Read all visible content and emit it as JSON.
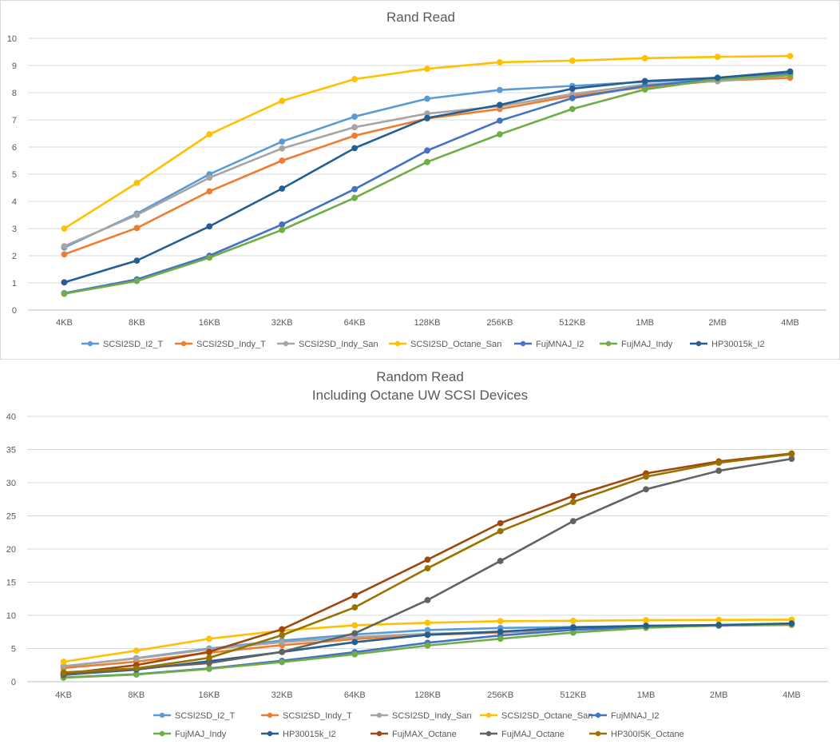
{
  "chart_data": [
    {
      "type": "line",
      "title": "Rand Read",
      "subtitle": "",
      "xlabel": "",
      "ylabel": "",
      "ylim": [
        0,
        10
      ],
      "yticks": [
        0,
        1,
        2,
        3,
        4,
        5,
        6,
        7,
        8,
        9,
        10
      ],
      "grid": true,
      "legend_placement": "bottom",
      "categories": [
        "4KB",
        "8KB",
        "16KB",
        "32KB",
        "64KB",
        "128KB",
        "256KB",
        "512KB",
        "1MB",
        "2MB",
        "4MB"
      ],
      "series": [
        {
          "name": "SCSI2SD_I2_T",
          "color": "#5b9bd5",
          "values": [
            2.3,
            3.55,
            5.0,
            6.2,
            7.12,
            7.78,
            8.1,
            8.25,
            8.4,
            8.5,
            8.7
          ]
        },
        {
          "name": "SCSI2SD_Indy_T",
          "color": "#ed7d31",
          "values": [
            2.05,
            3.02,
            4.37,
            5.5,
            6.42,
            7.05,
            7.4,
            7.88,
            8.2,
            8.44,
            8.55
          ]
        },
        {
          "name": "SCSI2SD_Indy_San",
          "color": "#a5a5a5",
          "values": [
            2.35,
            3.5,
            4.87,
            5.95,
            6.73,
            7.23,
            7.5,
            7.95,
            8.3,
            8.42,
            8.65
          ]
        },
        {
          "name": "SCSI2SD_Octane_San",
          "color": "#ffc000",
          "values": [
            3.0,
            4.68,
            6.47,
            7.7,
            8.5,
            8.88,
            9.12,
            9.18,
            9.27,
            9.32,
            9.35
          ]
        },
        {
          "name": "FujMNAJ_I2",
          "color": "#4472c4",
          "values": [
            0.62,
            1.13,
            2.0,
            3.15,
            4.45,
            5.87,
            6.97,
            7.8,
            8.25,
            8.5,
            8.7
          ]
        },
        {
          "name": "FujMAJ_Indy",
          "color": "#70ad47",
          "values": [
            0.6,
            1.07,
            1.93,
            2.95,
            4.13,
            5.45,
            6.47,
            7.4,
            8.12,
            8.5,
            8.65
          ]
        },
        {
          "name": "HP30015k_I2",
          "color": "#255e91",
          "values": [
            1.02,
            1.82,
            3.08,
            4.47,
            5.96,
            7.07,
            7.55,
            8.15,
            8.43,
            8.55,
            8.78
          ]
        }
      ]
    },
    {
      "type": "line",
      "title": "Random Read",
      "subtitle": "Including Octane UW SCSI Devices",
      "xlabel": "",
      "ylabel": "",
      "ylim": [
        0,
        40
      ],
      "yticks": [
        0,
        5,
        10,
        15,
        20,
        25,
        30,
        35,
        40
      ],
      "grid": true,
      "legend_placement": "bottom",
      "categories": [
        "4KB",
        "8KB",
        "16KB",
        "32KB",
        "64KB",
        "128KB",
        "256KB",
        "512KB",
        "1MB",
        "2MB",
        "4MB"
      ],
      "series": [
        {
          "name": "SCSI2SD_I2_T",
          "color": "#5b9bd5",
          "values": [
            2.3,
            3.55,
            5.0,
            6.2,
            7.12,
            7.78,
            8.1,
            8.25,
            8.4,
            8.5,
            8.7
          ]
        },
        {
          "name": "SCSI2SD_Indy_T",
          "color": "#ed7d31",
          "values": [
            2.05,
            3.02,
            4.37,
            5.5,
            6.42,
            7.05,
            7.4,
            7.88,
            8.2,
            8.44,
            8.55
          ]
        },
        {
          "name": "SCSI2SD_Indy_San",
          "color": "#a5a5a5",
          "values": [
            2.35,
            3.5,
            4.87,
            5.95,
            6.73,
            7.23,
            7.5,
            7.95,
            8.3,
            8.42,
            8.65
          ]
        },
        {
          "name": "SCSI2SD_Octane_San",
          "color": "#ffc000",
          "values": [
            3.0,
            4.68,
            6.47,
            7.7,
            8.5,
            8.88,
            9.12,
            9.18,
            9.27,
            9.32,
            9.35
          ]
        },
        {
          "name": "FujMNAJ_I2",
          "color": "#4472c4",
          "values": [
            0.62,
            1.13,
            2.0,
            3.15,
            4.45,
            5.87,
            6.97,
            7.8,
            8.25,
            8.5,
            8.7
          ]
        },
        {
          "name": "FujMAJ_Indy",
          "color": "#70ad47",
          "values": [
            0.6,
            1.07,
            1.93,
            2.95,
            4.13,
            5.45,
            6.47,
            7.4,
            8.12,
            8.5,
            8.65
          ]
        },
        {
          "name": "HP30015k_I2",
          "color": "#255e91",
          "values": [
            1.02,
            1.82,
            3.08,
            4.47,
            5.96,
            7.07,
            7.55,
            8.15,
            8.43,
            8.55,
            8.78
          ]
        },
        {
          "name": "FujMAX_Octane",
          "color": "#9e480e",
          "values": [
            1.2,
            2.5,
            4.5,
            7.9,
            13.0,
            18.4,
            23.9,
            28.0,
            31.4,
            33.2,
            34.4
          ]
        },
        {
          "name": "FujMAJ_Octane",
          "color": "#636363",
          "values": [
            1.0,
            2.0,
            2.8,
            4.5,
            7.3,
            12.3,
            18.2,
            24.2,
            29.0,
            31.8,
            33.6
          ]
        },
        {
          "name": "HP300I5K_Octane",
          "color": "#997300",
          "values": [
            1.4,
            2.0,
            3.6,
            7.0,
            11.2,
            17.1,
            22.7,
            27.1,
            30.9,
            33.0,
            34.3
          ]
        }
      ]
    }
  ]
}
